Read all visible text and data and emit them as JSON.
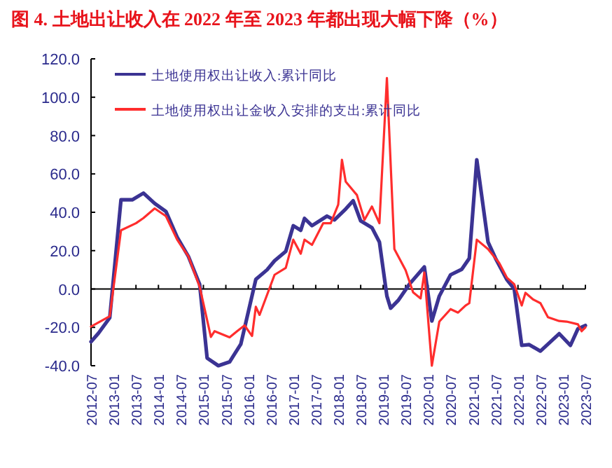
{
  "chart_data": {
    "type": "line",
    "title": "图 4. 土地出让收入在 2022 年至 2023 年都出现大幅下降（%）",
    "legend": "top left",
    "marker": "none",
    "line_style": "solid",
    "xlim": [
      "2012-07",
      "2023-07"
    ],
    "xticks": [
      "2012-07",
      "2013-01",
      "2013-07",
      "2014-01",
      "2014-07",
      "2015-01",
      "2015-07",
      "2016-01",
      "2016-07",
      "2017-01",
      "2017-07",
      "2018-01",
      "2018-07",
      "2019-01",
      "2019-07",
      "2020-01",
      "2020-07",
      "2021-01",
      "2021-07",
      "2022-01",
      "2022-07",
      "2023-01",
      "2023-07"
    ],
    "ylim": [
      -40,
      120
    ],
    "yticks": [
      {
        "value": 120,
        "label": "120.0"
      },
      {
        "value": 100,
        "label": "100.0"
      },
      {
        "value": 80,
        "label": "80.0"
      },
      {
        "value": 60,
        "label": "60.0"
      },
      {
        "value": 40,
        "label": "40.0"
      },
      {
        "value": 20,
        "label": "20.0"
      },
      {
        "value": 0,
        "label": "0.0"
      },
      {
        "value": -20,
        "label": "-20.0"
      },
      {
        "value": -40,
        "label": "-40.0"
      }
    ],
    "series": [
      {
        "name": "土地使用权出让收入:累计同比",
        "color": "#3b3393",
        "x": [
          "2012-07",
          "2012-09",
          "2012-12",
          "2013-03",
          "2013-06",
          "2013-09",
          "2013-12",
          "2014-03",
          "2014-06",
          "2014-09",
          "2014-12",
          "2015-02",
          "2015-05",
          "2015-08",
          "2015-11",
          "2016-03",
          "2016-06",
          "2016-08",
          "2016-11",
          "2017-01",
          "2017-03",
          "2017-04",
          "2017-06",
          "2017-10",
          "2017-12",
          "2018-03",
          "2018-05",
          "2018-07",
          "2018-10",
          "2018-12",
          "2019-02",
          "2019-03",
          "2019-05",
          "2019-08",
          "2019-12",
          "2020-02",
          "2020-04",
          "2020-07",
          "2020-10",
          "2020-12",
          "2021-02",
          "2021-05",
          "2021-07",
          "2021-10",
          "2021-12",
          "2022-02",
          "2022-04",
          "2022-07",
          "2022-12",
          "2023-03",
          "2023-05",
          "2023-07"
        ],
        "values": [
          -27.5,
          -23,
          -15,
          46.5,
          46.5,
          50,
          44.6,
          40.4,
          27,
          17,
          2.5,
          -36,
          -40,
          -38,
          -28.7,
          5,
          10,
          14.7,
          19.6,
          33,
          30.6,
          36.8,
          33,
          38,
          36,
          41.7,
          46,
          35.5,
          32,
          24.5,
          -3.7,
          -10,
          -6,
          2.5,
          11.5,
          -16.7,
          -3.7,
          7.4,
          10.3,
          16,
          67.4,
          24.5,
          16,
          5,
          0,
          -29.4,
          -29,
          -32.4,
          -23.3,
          -29.4,
          -20.8,
          -19
        ]
      },
      {
        "name": "土地使用权出让金收入安排的支出:累计同比",
        "color": "#ff2d2d",
        "x": [
          "2012-07",
          "2012-12",
          "2013-03",
          "2013-07",
          "2013-09",
          "2013-12",
          "2014-03",
          "2014-06",
          "2014-09",
          "2014-12",
          "2015-03",
          "2015-04",
          "2015-08",
          "2015-10",
          "2015-12",
          "2016-02",
          "2016-03",
          "2016-04",
          "2016-08",
          "2016-11",
          "2017-01",
          "2017-03",
          "2017-04",
          "2017-06",
          "2017-09",
          "2017-11",
          "2018-01",
          "2018-02",
          "2018-03",
          "2018-06",
          "2018-08",
          "2018-10",
          "2018-12",
          "2019-02",
          "2019-04",
          "2019-07",
          "2019-09",
          "2019-11",
          "2019-12",
          "2020-02",
          "2020-04",
          "2020-07",
          "2020-09",
          "2020-11",
          "2020-12",
          "2021-02",
          "2021-05",
          "2021-08",
          "2021-10",
          "2021-12",
          "2022-02",
          "2022-03",
          "2022-05",
          "2022-07",
          "2022-09",
          "2022-12",
          "2023-02",
          "2023-05",
          "2023-06",
          "2023-07"
        ],
        "values": [
          -19.6,
          -14.2,
          30.6,
          34.3,
          37,
          42,
          38,
          25.7,
          17,
          1.2,
          -25,
          -22,
          -25.2,
          -22,
          -19,
          -24.5,
          -9.3,
          -13.5,
          7.4,
          11,
          25.7,
          18.4,
          25.7,
          23,
          34.3,
          34.3,
          44,
          67.4,
          56,
          49,
          36,
          43,
          34.3,
          110,
          20.8,
          9.8,
          -1.7,
          -4.9,
          8.6,
          -40,
          -17,
          -10.5,
          -12.3,
          -8.6,
          -7.4,
          25.7,
          20.8,
          13.5,
          6,
          2.5,
          -8.6,
          -2,
          -5.4,
          -7.4,
          -14.7,
          -16.7,
          -17,
          -18.4,
          -22,
          -20
        ]
      }
    ]
  }
}
